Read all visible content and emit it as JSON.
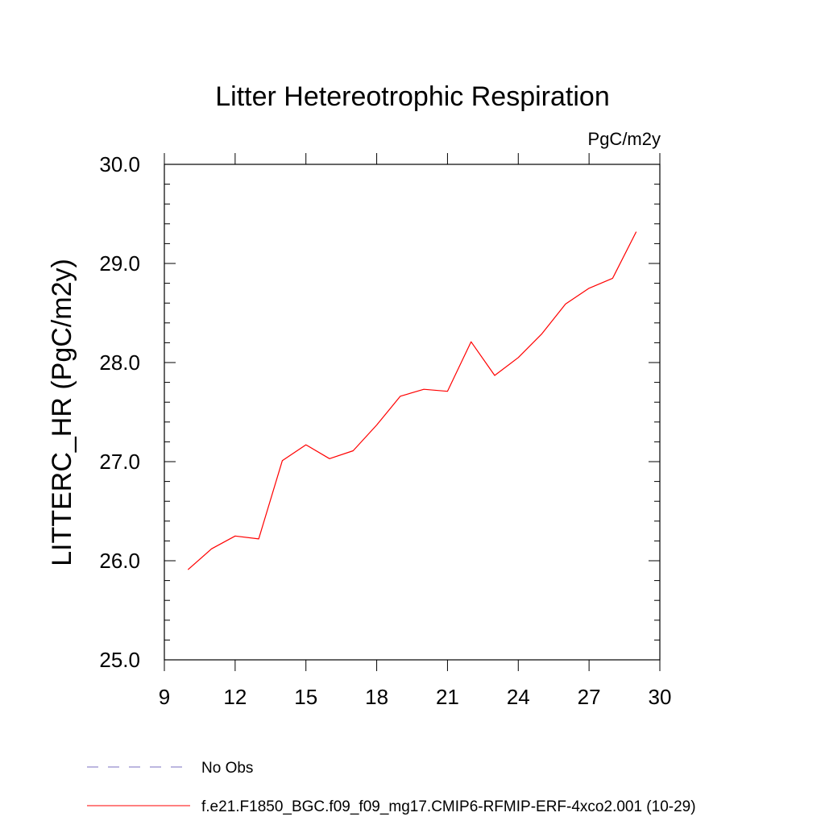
{
  "chart_data": {
    "type": "line",
    "title": "Litter Hetereotrophic Respiration",
    "units_label": "PgC/m2y",
    "ylabel": "LITTERC_HR  (PgC/m2y)",
    "xlabel": "",
    "xlim": [
      9,
      30
    ],
    "ylim": [
      25.0,
      30.0
    ],
    "x_ticks": [
      9,
      12,
      15,
      18,
      21,
      24,
      27,
      30
    ],
    "x_tick_labels": [
      "9",
      "12",
      "15",
      "18",
      "21",
      "24",
      "27",
      "30"
    ],
    "y_ticks": [
      25.0,
      26.0,
      27.0,
      28.0,
      29.0,
      30.0
    ],
    "y_tick_labels": [
      "25.0",
      "26.0",
      "27.0",
      "28.0",
      "29.0",
      "30.0"
    ],
    "grid": false,
    "legend_position": "bottom-left",
    "series": [
      {
        "name": "f.e21.F1850_BGC.f09_f09_mg17.CMIP6-RFMIP-ERF-4xco2.001 (10-29)",
        "color": "#ff0000",
        "style": "solid",
        "x": [
          10,
          11,
          12,
          13,
          14,
          15,
          16,
          17,
          18,
          19,
          20,
          21,
          22,
          23,
          24,
          25,
          26,
          27,
          28,
          29
        ],
        "values": [
          25.91,
          26.12,
          26.25,
          26.22,
          27.01,
          27.17,
          27.03,
          27.11,
          27.37,
          27.66,
          27.73,
          27.71,
          28.21,
          27.87,
          28.05,
          28.29,
          28.59,
          28.75,
          28.85,
          29.32
        ]
      }
    ],
    "legend": [
      {
        "label": "No Obs",
        "color": "#7a6fc0",
        "style": "dashed"
      },
      {
        "label": "f.e21.F1850_BGC.f09_f09_mg17.CMIP6-RFMIP-ERF-4xco2.001 (10-29)",
        "color": "#ff0000",
        "style": "solid"
      }
    ]
  }
}
